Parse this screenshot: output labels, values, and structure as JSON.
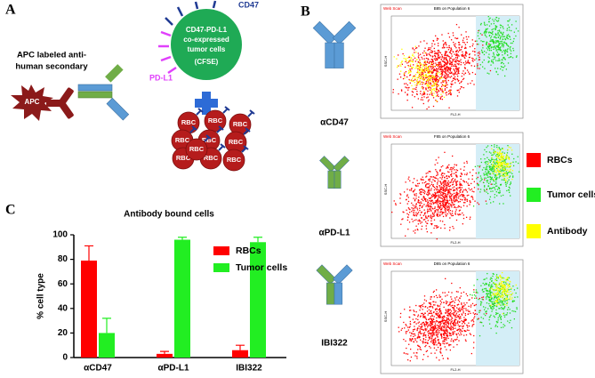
{
  "panel_labels": [
    "A",
    "B",
    "C"
  ],
  "panel_a": {
    "secondary_label": [
      "APC labeled anti-",
      "human secondary"
    ],
    "apc": "APC",
    "cd47": "CD47",
    "pdl1": "PD-L1",
    "tumor_cell": [
      "CD47-PD-L1",
      "co-expressed",
      "tumor cells",
      "(CFSE)"
    ],
    "rbc": "RBC"
  },
  "panel_b": {
    "antibodies": [
      "αCD47",
      "αPD-L1",
      "IBI322"
    ],
    "legend": [
      "RBCs",
      "Tumor cells",
      "Antibody"
    ],
    "plot_header": "Web Scan",
    "plot_titles": [
      "B85 on Population 6",
      "F85 on Population 6",
      "D85 on Population 6"
    ],
    "x_axis": "FL2-H",
    "y_axis": "SSC-H"
  },
  "chart_data": {
    "type": "bar",
    "title": "Antibody bound cells",
    "y_label": "% cell type",
    "categories": [
      "αCD47",
      "αPD-L1",
      "IBI322"
    ],
    "series": [
      {
        "name": "RBCs",
        "color": "#ff0000",
        "values": [
          79,
          3,
          6
        ],
        "errors": [
          12,
          2,
          4
        ]
      },
      {
        "name": "Tumor cells",
        "color": "#22ee22",
        "values": [
          20,
          96,
          94
        ],
        "errors": [
          12,
          2,
          4
        ]
      }
    ],
    "ylim": [
      0,
      100
    ],
    "yticks": [
      0,
      20,
      40,
      60,
      80,
      100
    ]
  }
}
